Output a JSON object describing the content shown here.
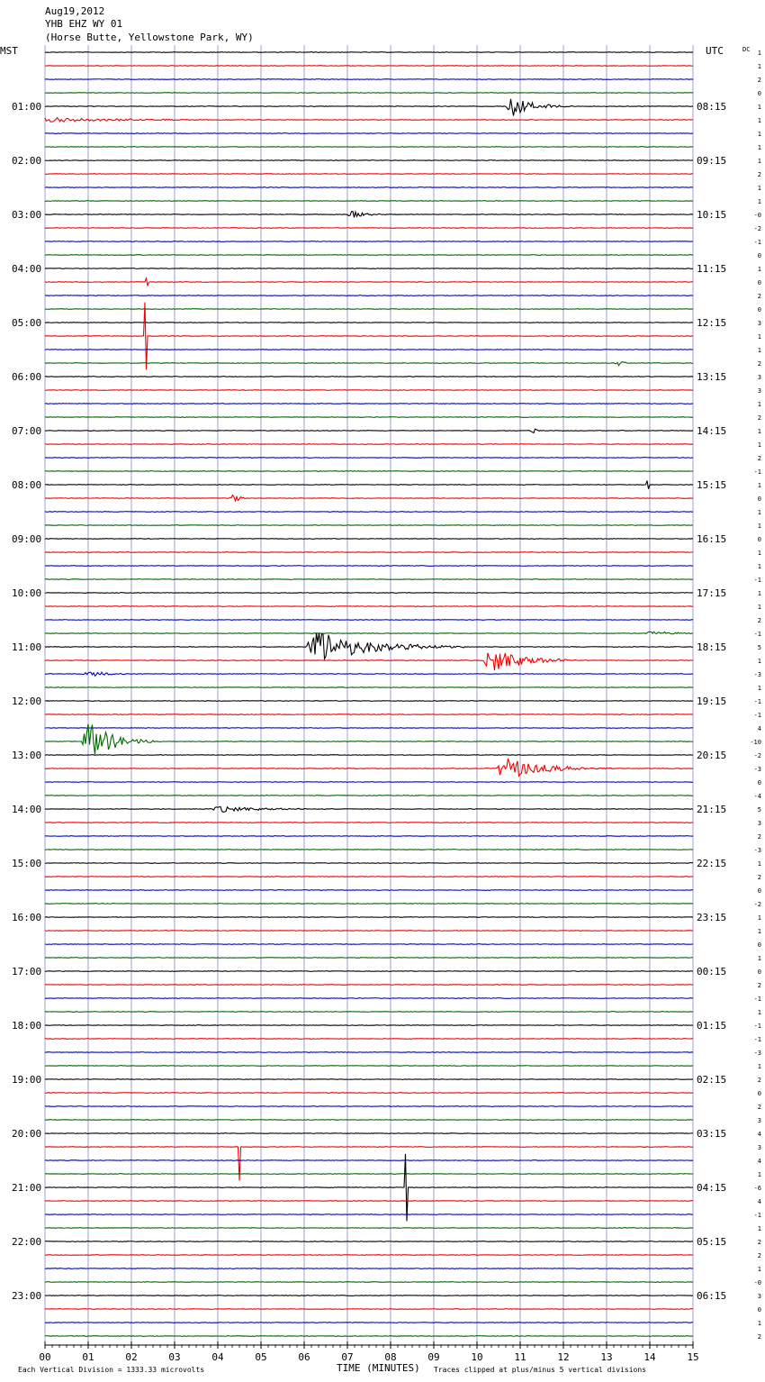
{
  "header": {
    "date": "Aug19,2012",
    "station": "YHB EHZ WY 01",
    "location": "(Horse Butte, Yellowstone Park, WY)"
  },
  "left_axis_title": "MST",
  "right_axis_title": "UTC",
  "dc_title": "DC",
  "footer": {
    "scale_note": "Each Vertical Division = 1333.33 microvolts",
    "xlabel": "TIME (MINUTES)",
    "clip_note": "Traces clipped at plus/minus 5 vertical divisions"
  },
  "colors": {
    "trace_cycle": [
      "#000000",
      "#ee0000",
      "#0000cc",
      "#006600"
    ],
    "gridline": "#8888cc"
  },
  "chart_data": {
    "type": "line",
    "description_free": true,
    "rows": 96,
    "minutes_per_row": 15,
    "xlim": [
      0,
      15
    ],
    "x_ticks": [
      "00",
      "01",
      "02",
      "03",
      "04",
      "05",
      "06",
      "07",
      "08",
      "09",
      "10",
      "11",
      "12",
      "13",
      "14",
      "15"
    ],
    "left_hour_labels": [
      "01:00",
      "02:00",
      "03:00",
      "04:00",
      "05:00",
      "06:00",
      "07:00",
      "08:00",
      "09:00",
      "10:00",
      "11:00",
      "12:00",
      "13:00",
      "14:00",
      "15:00",
      "16:00",
      "17:00",
      "18:00",
      "19:00",
      "20:00",
      "21:00",
      "22:00",
      "23:00"
    ],
    "right_hour_labels": [
      "08:15",
      "09:15",
      "10:15",
      "11:15",
      "12:15",
      "13:15",
      "14:15",
      "15:15",
      "16:15",
      "17:15",
      "18:15",
      "19:15",
      "20:15",
      "21:15",
      "22:15",
      "23:15",
      "00:15",
      "01:15",
      "02:15",
      "03:15",
      "04:15",
      "05:15",
      "06:15"
    ],
    "dc_offsets": [
      "1",
      "1",
      "2",
      "0",
      "1",
      "1",
      "1",
      "1",
      "1",
      "2",
      "1",
      "1",
      "-0",
      "-2",
      "-1",
      "0",
      "1",
      "0",
      "2",
      "0",
      "3",
      "1",
      "1",
      "2",
      "3",
      "3",
      "1",
      "2",
      "1",
      "1",
      "2",
      "-1",
      "1",
      "0",
      "1",
      "1",
      "0",
      "1",
      "1",
      "-1",
      "1",
      "1",
      "2",
      "-1",
      "5",
      "1",
      "-3",
      "1",
      "-1",
      "-1",
      "4",
      "-10",
      "-2",
      "-3",
      "0",
      "-4",
      "5",
      "3",
      "2",
      "-3",
      "1",
      "2",
      "0",
      "-2",
      "1",
      "1",
      "0",
      "1",
      "0",
      "2",
      "-1",
      "1",
      "-1",
      "-1",
      "-3",
      "1",
      "2",
      "0",
      "2",
      "3",
      "4",
      "3",
      "4",
      "1",
      "-6",
      "4",
      "-1",
      "1",
      "2",
      "2",
      "1",
      "-0",
      "3",
      "0",
      "1",
      "2"
    ],
    "events": [
      {
        "row": 4,
        "minute": 10.8,
        "amplitude": 1.6,
        "duration": 1.4
      },
      {
        "row": 5,
        "minute": 0.0,
        "amplitude": 0.35,
        "duration": 5.5
      },
      {
        "row": 12,
        "minute": 7.1,
        "amplitude": 0.55,
        "duration": 0.8
      },
      {
        "row": 17,
        "minute": 2.35,
        "amplitude": 0.5,
        "duration": 0.1
      },
      {
        "row": 21,
        "minute": 2.33,
        "amplitude": 5.0,
        "duration": 0.05
      },
      {
        "row": 23,
        "minute": 13.3,
        "amplitude": 0.4,
        "duration": 0.3
      },
      {
        "row": 28,
        "minute": 11.3,
        "amplitude": 0.5,
        "duration": 0.2
      },
      {
        "row": 32,
        "minute": 13.95,
        "amplitude": 0.6,
        "duration": 0.1
      },
      {
        "row": 33,
        "minute": 4.4,
        "amplitude": 0.9,
        "duration": 0.25
      },
      {
        "row": 43,
        "minute": 14.0,
        "amplitude": 0.3,
        "duration": 2.0
      },
      {
        "row": 44,
        "minute": 6.2,
        "amplitude": 2.5,
        "duration": 3.5
      },
      {
        "row": 45,
        "minute": 10.3,
        "amplitude": 2.0,
        "duration": 2.0
      },
      {
        "row": 46,
        "minute": 1.0,
        "amplitude": 0.4,
        "duration": 1.5
      },
      {
        "row": 51,
        "minute": 1.0,
        "amplitude": 3.0,
        "duration": 1.6
      },
      {
        "row": 53,
        "minute": 10.6,
        "amplitude": 1.8,
        "duration": 2.5
      },
      {
        "row": 56,
        "minute": 4.0,
        "amplitude": 0.5,
        "duration": 2.5
      },
      {
        "row": 81,
        "minute": 4.5,
        "amplitude": 5.0,
        "duration": 0.05
      },
      {
        "row": 84,
        "minute": 8.35,
        "amplitude": 5.0,
        "duration": 0.05
      }
    ]
  }
}
